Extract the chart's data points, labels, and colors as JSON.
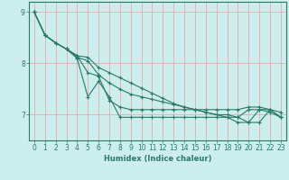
{
  "xlabel": "Humidex (Indice chaleur)",
  "ylabel": "",
  "xlim": [
    -0.5,
    23.5
  ],
  "ylim": [
    6.5,
    9.2
  ],
  "background_color": "#cceeed",
  "grid_color": "#e8a0a0",
  "line_color": "#2a7a6a",
  "spine_color": "#2a7a6a",
  "xtick_labels": [
    "0",
    "1",
    "2",
    "3",
    "4",
    "5",
    "6",
    "7",
    "8",
    "9",
    "10",
    "11",
    "12",
    "13",
    "14",
    "15",
    "16",
    "17",
    "18",
    "19",
    "20",
    "21",
    "22",
    "23"
  ],
  "ytick_values": [
    7,
    8,
    9
  ],
  "series": [
    [
      9.0,
      8.55,
      8.4,
      8.28,
      8.1,
      7.35,
      7.65,
      7.35,
      6.95,
      6.95,
      6.95,
      6.95,
      6.95,
      6.95,
      6.95,
      6.95,
      6.95,
      6.95,
      6.95,
      6.95,
      7.1,
      7.1,
      7.05,
      6.95
    ],
    [
      9.0,
      8.55,
      8.4,
      8.28,
      8.15,
      7.82,
      7.75,
      7.28,
      7.15,
      7.1,
      7.1,
      7.1,
      7.1,
      7.1,
      7.1,
      7.1,
      7.1,
      7.1,
      7.1,
      7.1,
      7.15,
      7.15,
      7.1,
      7.05
    ],
    [
      9.0,
      8.55,
      8.4,
      8.28,
      8.12,
      8.05,
      7.78,
      7.62,
      7.5,
      7.4,
      7.35,
      7.3,
      7.25,
      7.2,
      7.15,
      7.1,
      7.05,
      7.0,
      6.95,
      6.85,
      6.85,
      7.1,
      7.1,
      6.95
    ],
    [
      9.0,
      8.55,
      8.4,
      8.28,
      8.15,
      8.12,
      7.92,
      7.82,
      7.72,
      7.62,
      7.52,
      7.42,
      7.32,
      7.22,
      7.15,
      7.1,
      7.05,
      7.0,
      7.0,
      6.95,
      6.85,
      6.85,
      7.1,
      6.95
    ]
  ],
  "marker": "+",
  "markersize": 3,
  "linewidth": 0.8,
  "label_fontsize": 6,
  "tick_fontsize": 5.5
}
